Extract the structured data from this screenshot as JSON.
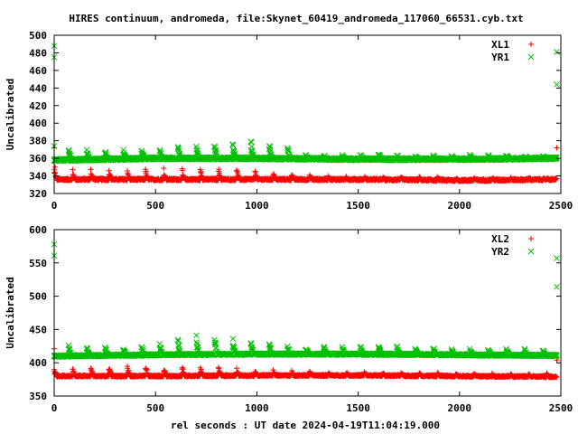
{
  "chart_data": {
    "title": "HIRES continuum, andromeda, file:Skynet_60419_andromeda_117060_66531.cyb.txt",
    "xlabel": "rel seconds : UT date 2024-04-19T11:04:19.000",
    "x_ticks": [
      0,
      500,
      1000,
      1500,
      2000,
      2500
    ],
    "colors": {
      "red": "#ff0000",
      "green": "#00c000"
    },
    "panels": [
      {
        "type": "scatter",
        "ylabel": "Uncalibrated",
        "xlim": [
          0,
          2500
        ],
        "ylim": [
          320,
          500
        ],
        "y_ticks": [
          320,
          340,
          360,
          380,
          400,
          420,
          440,
          460,
          480,
          500
        ],
        "legend": "top-right",
        "series": [
          {
            "name": "XL1",
            "marker": "plus",
            "color": "#ff0000",
            "baseline": [
              [
                0,
                336
              ],
              [
                500,
                336
              ],
              [
                1000,
                336
              ],
              [
                1500,
                336
              ],
              [
                2000,
                335
              ],
              [
                2480,
                336
              ]
            ],
            "peak": [
              [
                0,
                348
              ],
              [
                500,
                349
              ],
              [
                750,
                351
              ],
              [
                950,
                348
              ],
              [
                1100,
                346
              ],
              [
                1250,
                341
              ],
              [
                1500,
                339
              ],
              [
                2000,
                338
              ],
              [
                2480,
                338
              ]
            ],
            "outliers": [
              [
                0,
                372
              ],
              [
                2480,
                372
              ],
              [
                5,
                350
              ]
            ]
          },
          {
            "name": "YR1",
            "marker": "x",
            "color": "#00c000",
            "baseline": [
              [
                0,
                358
              ],
              [
                500,
                360
              ],
              [
                1000,
                360
              ],
              [
                1500,
                359
              ],
              [
                2000,
                359
              ],
              [
                2480,
                360
              ]
            ],
            "peak": [
              [
                0,
                373
              ],
              [
                300,
                371
              ],
              [
                500,
                373
              ],
              [
                650,
                377
              ],
              [
                800,
                384
              ],
              [
                950,
                385
              ],
              [
                1050,
                381
              ],
              [
                1150,
                377
              ],
              [
                1250,
                364
              ],
              [
                1500,
                365
              ],
              [
                2000,
                364
              ],
              [
                2480,
                364
              ]
            ],
            "outliers": [
              [
                0,
                488
              ],
              [
                0,
                475
              ],
              [
                0,
                374
              ],
              [
                2480,
                481
              ],
              [
                2480,
                444
              ]
            ]
          }
        ]
      },
      {
        "type": "scatter",
        "ylabel": "Uncalibrated",
        "xlim": [
          0,
          2500
        ],
        "ylim": [
          350,
          600
        ],
        "y_ticks": [
          350,
          400,
          450,
          500,
          550,
          600
        ],
        "legend": "top-right",
        "series": [
          {
            "name": "XL2",
            "marker": "plus",
            "color": "#ff0000",
            "baseline": [
              [
                0,
                380
              ],
              [
                500,
                380
              ],
              [
                1000,
                381
              ],
              [
                1500,
                381
              ],
              [
                2000,
                380
              ],
              [
                2480,
                379
              ]
            ],
            "peak": [
              [
                0,
                392
              ],
              [
                300,
                397
              ],
              [
                400,
                399
              ],
              [
                500,
                397
              ],
              [
                700,
                397
              ],
              [
                900,
                392
              ],
              [
                1100,
                389
              ],
              [
                1300,
                386
              ],
              [
                1500,
                386
              ],
              [
                2000,
                385
              ],
              [
                2480,
                384
              ]
            ],
            "outliers": [
              [
                0,
                421
              ],
              [
                2480,
                404
              ]
            ]
          },
          {
            "name": "YR2",
            "marker": "x",
            "color": "#00c000",
            "baseline": [
              [
                0,
                410
              ],
              [
                500,
                412
              ],
              [
                1000,
                413
              ],
              [
                1500,
                413
              ],
              [
                2000,
                412
              ],
              [
                2480,
                411
              ]
            ],
            "peak": [
              [
                0,
                430
              ],
              [
                300,
                426
              ],
              [
                500,
                428
              ],
              [
                650,
                444
              ],
              [
                750,
                448
              ],
              [
                900,
                440
              ],
              [
                1000,
                435
              ],
              [
                1100,
                431
              ],
              [
                1300,
                425
              ],
              [
                1600,
                428
              ],
              [
                2000,
                422
              ],
              [
                2480,
                420
              ]
            ],
            "outliers": [
              [
                0,
                578
              ],
              [
                0,
                561
              ],
              [
                2480,
                557
              ],
              [
                2480,
                514
              ]
            ]
          }
        ]
      }
    ]
  }
}
